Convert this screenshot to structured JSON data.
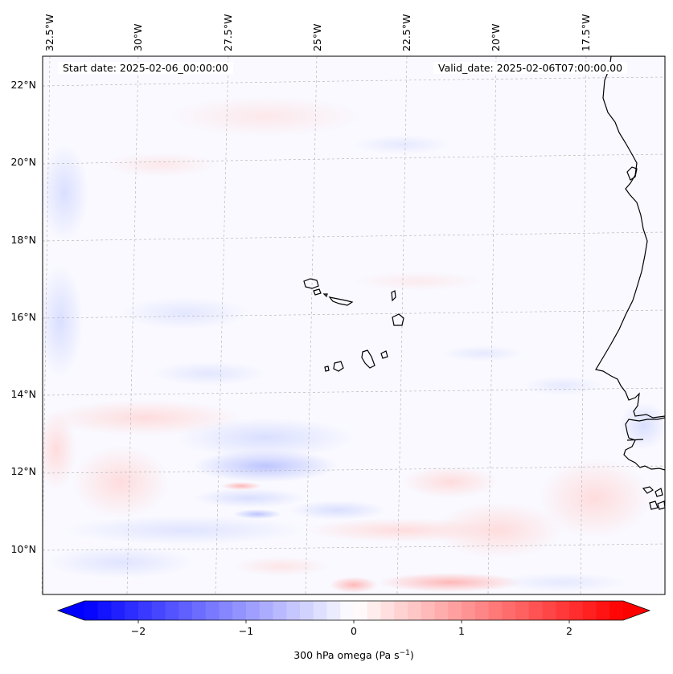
{
  "info": {
    "start_date": "Start date: 2025-02-06_00:00:00",
    "valid_date": "Valid_date: 2025-02-06T07:00:00.00"
  },
  "axes": {
    "lat_labels": [
      "22°N",
      "20°N",
      "18°N",
      "16°N",
      "14°N",
      "12°N",
      "10°N"
    ],
    "lon_labels": [
      "32.5°W",
      "30°W",
      "27.5°W",
      "25°W",
      "22.5°W",
      "20°W",
      "17.5°W"
    ]
  },
  "colorbar": {
    "label_main": "300 hPa omega (Pa s",
    "label_exp": "−1",
    "label_close": ")",
    "ticks": [
      "−2",
      "−1",
      "0",
      "1",
      "2"
    ],
    "tick_values": [
      -2,
      -1,
      0,
      1,
      2
    ],
    "vmin": -2.5,
    "vmax": 2.5,
    "color_low": "#0000ff",
    "color_mid": "#ffffff",
    "color_high": "#ff0000"
  },
  "map_colors": {
    "coast": "#000000",
    "grid": "#b0b0b0",
    "frame": "#000000"
  }
}
